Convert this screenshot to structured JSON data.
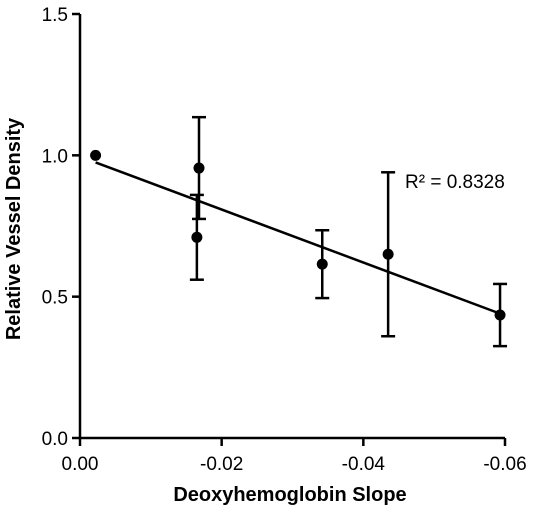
{
  "chart_data": {
    "type": "scatter",
    "xlabel": "Deoxyhemoglobin Slope",
    "ylabel": "Relative Vessel Density",
    "xlim": [
      0.0,
      -0.06
    ],
    "ylim": [
      0.0,
      1.5
    ],
    "x_ticks": [
      0.0,
      -0.02,
      -0.04,
      -0.06
    ],
    "x_tick_labels": [
      "0.00",
      "-0.02",
      "-0.04",
      "-0.06"
    ],
    "y_ticks": [
      0.0,
      0.5,
      1.0,
      1.5
    ],
    "y_tick_labels": [
      "0.0",
      "0.5",
      "1.0",
      "1.5"
    ],
    "points": [
      {
        "x": -0.0022,
        "y": 1.0,
        "err_low": null,
        "err_high": null
      },
      {
        "x": -0.0165,
        "y": 0.71,
        "err_low": 0.56,
        "err_high": 0.86
      },
      {
        "x": -0.0168,
        "y": 0.955,
        "err_low": 0.775,
        "err_high": 1.135
      },
      {
        "x": -0.0342,
        "y": 0.615,
        "err_low": 0.495,
        "err_high": 0.735
      },
      {
        "x": -0.0435,
        "y": 0.65,
        "err_low": 0.36,
        "err_high": 0.94
      },
      {
        "x": -0.0593,
        "y": 0.435,
        "err_low": 0.325,
        "err_high": 0.545
      }
    ],
    "fit_line": {
      "x": [
        -0.0022,
        -0.0593
      ],
      "y": [
        0.975,
        0.44
      ]
    },
    "annotation": "R² = 0.8328",
    "grid": false,
    "legend": "none"
  }
}
